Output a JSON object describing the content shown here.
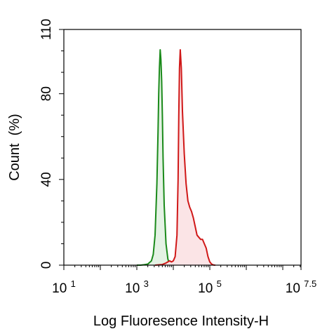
{
  "chart_data": {
    "type": "area",
    "title": "",
    "xlabel": "Log Fluoresence Intensity-H",
    "ylabel": "Count  (%)",
    "x_scale": "log10",
    "xlim": [
      10,
      31622776.6
    ],
    "ylim": [
      0,
      110
    ],
    "x_ticks": [
      {
        "base": "10",
        "exp": "1",
        "value": 10
      },
      {
        "base": "10",
        "exp": "3",
        "value": 1000
      },
      {
        "base": "10",
        "exp": "5",
        "value": 100000
      },
      {
        "base": "10",
        "exp": "7.5",
        "value": 31622776.6
      }
    ],
    "y_ticks": [
      {
        "label": "0",
        "value": 0
      },
      {
        "label": "40",
        "value": 40
      },
      {
        "label": "80",
        "value": 80
      },
      {
        "label": "110",
        "value": 110
      }
    ],
    "series": [
      {
        "color": "#1a8a1a",
        "fill": "#e4f2e4",
        "x": [
          1000,
          1259,
          1585,
          1995,
          2512,
          2818,
          3162,
          3548,
          3802,
          3981,
          4169,
          4365,
          4571,
          4786,
          5012,
          5248,
          5623,
          6310,
          7079,
          7943
        ],
        "values": [
          0,
          0,
          0.2,
          0.5,
          2,
          5,
          14,
          38,
          62,
          80,
          92,
          100.5,
          96,
          86,
          70,
          50,
          28,
          10,
          3,
          0
        ]
      },
      {
        "color": "#d01818",
        "fill": "#fbe4e6",
        "x": [
          3162,
          5012,
          6310,
          7079,
          7943,
          8913,
          10000,
          11220,
          12589,
          13490,
          14125,
          14791,
          15488,
          16596,
          17783,
          19953,
          22387,
          25119,
          28184,
          31623,
          35481,
          39811,
          44668,
          50119,
          56234,
          63096,
          70795,
          79433,
          89125,
          100000,
          112202,
          125893,
          141254
        ],
        "values": [
          0,
          0.3,
          1,
          1.5,
          2,
          1.5,
          2,
          4,
          14,
          40,
          70,
          92,
          100.5,
          92,
          72,
          52,
          38,
          30,
          27,
          25,
          22,
          18,
          14,
          13,
          12,
          12,
          10,
          8,
          4,
          1.5,
          0.5,
          0.1,
          0
        ]
      }
    ],
    "grid": false,
    "legend": "none"
  }
}
